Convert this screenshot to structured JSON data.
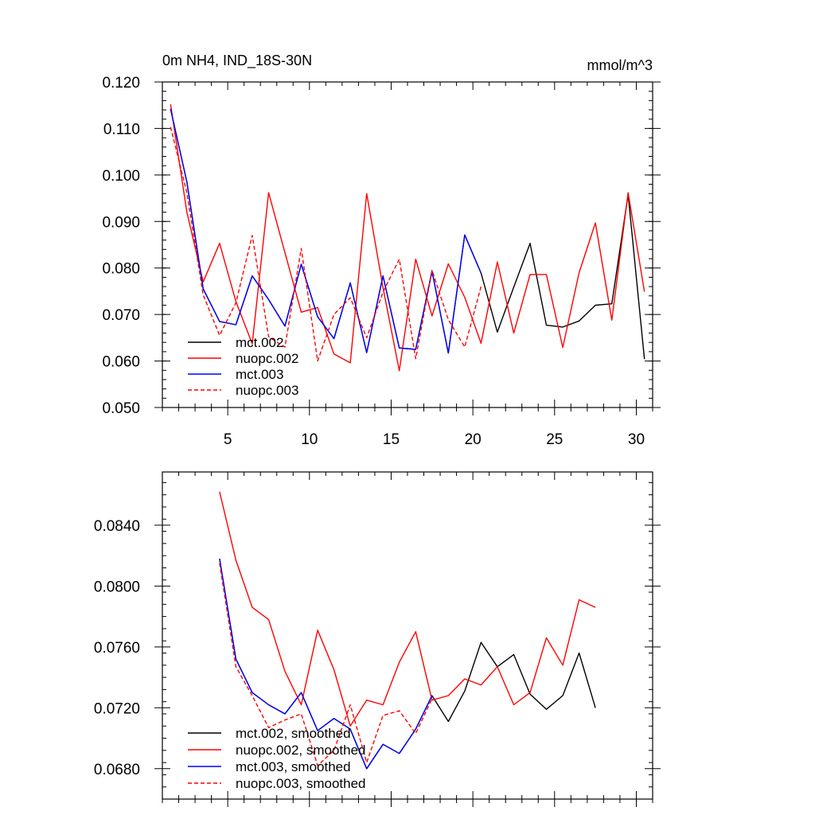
{
  "chart_data": [
    {
      "type": "line",
      "title": "0m NH4, IND_18S-30N",
      "units": "mmol/m^3",
      "xlim": [
        1,
        31
      ],
      "ylim": [
        0.05,
        0.12
      ],
      "x_tick_labels": [
        "5",
        "10",
        "15",
        "20",
        "25",
        "30"
      ],
      "y_tick_labels": [
        "0.050",
        "0.060",
        "0.070",
        "0.080",
        "0.090",
        "0.100",
        "0.110",
        "0.120"
      ],
      "series": [
        {
          "name": "mct.002",
          "color": "#000000",
          "dashed": false,
          "x": [
            1.5,
            2.5,
            3.5,
            4.5,
            5.5,
            6.5,
            7.5,
            8.5,
            9.5,
            10.5,
            11.5,
            12.5,
            13.5,
            14.5,
            15.5,
            16.5,
            17.5,
            18.5,
            19.5,
            20.5,
            21.5,
            22.5,
            23.5,
            24.5,
            25.5,
            26.5,
            27.5,
            28.5,
            29.5,
            30.5
          ],
          "values": [
            0.1142,
            0.0985,
            0.0755,
            0.0685,
            0.0678,
            0.0783,
            0.0732,
            0.0675,
            0.0808,
            0.0695,
            0.0648,
            0.0768,
            0.0618,
            0.0783,
            0.0628,
            0.0625,
            0.0793,
            0.0617,
            0.0871,
            0.0789,
            0.0662,
            0.0759,
            0.0853,
            0.0677,
            0.0673,
            0.0686,
            0.072,
            0.0723,
            0.0958,
            0.0604
          ]
        },
        {
          "name": "nuopc.002",
          "color": "#ff0000",
          "dashed": false,
          "x": [
            1.5,
            2.5,
            3.5,
            4.5,
            5.5,
            6.5,
            7.5,
            8.5,
            9.5,
            10.5,
            11.5,
            12.5,
            13.5,
            14.5,
            15.5,
            16.5,
            17.5,
            18.5,
            19.5,
            20.5,
            21.5,
            22.5,
            23.5,
            24.5,
            25.5,
            26.5,
            27.5,
            28.5,
            29.5,
            30.5
          ],
          "values": [
            0.1152,
            0.092,
            0.077,
            0.0853,
            0.0728,
            0.0637,
            0.0962,
            0.0833,
            0.0705,
            0.0715,
            0.0615,
            0.0596,
            0.096,
            0.0758,
            0.0579,
            0.0819,
            0.0697,
            0.0809,
            0.0737,
            0.0638,
            0.0813,
            0.066,
            0.0786,
            0.0786,
            0.0629,
            0.079,
            0.0897,
            0.0688,
            0.0962,
            0.0749
          ]
        },
        {
          "name": "mct.003",
          "color": "#0000ff",
          "dashed": false,
          "x": [
            1.5,
            2.5,
            3.5,
            4.5,
            5.5,
            6.5,
            7.5,
            8.5,
            9.5,
            10.5,
            11.5,
            12.5,
            13.5,
            14.5,
            15.5,
            16.5,
            17.5,
            18.5,
            19.5,
            20.5
          ],
          "values": [
            0.1142,
            0.0985,
            0.0755,
            0.0685,
            0.0678,
            0.0783,
            0.0732,
            0.0675,
            0.0808,
            0.0695,
            0.0648,
            0.0768,
            0.0618,
            0.0783,
            0.0628,
            0.0625,
            0.0793,
            0.0617,
            0.0871,
            0.0789
          ]
        },
        {
          "name": "nuopc.003",
          "color": "#ff0000",
          "dashed": true,
          "x": [
            1.5,
            2.5,
            3.5,
            4.5,
            5.5,
            6.5,
            7.5,
            8.5,
            9.5,
            10.5,
            11.5,
            12.5,
            13.5,
            14.5,
            15.5,
            16.5,
            17.5,
            18.5,
            19.5,
            20.5
          ],
          "values": [
            0.1103,
            0.0962,
            0.0742,
            0.0655,
            0.0725,
            0.087,
            0.0652,
            0.063,
            0.0842,
            0.06,
            0.07,
            0.0736,
            0.065,
            0.0748,
            0.0819,
            0.0605,
            0.0795,
            0.0689,
            0.063,
            0.076
          ]
        }
      ]
    },
    {
      "type": "line",
      "title": "",
      "xlim": [
        1,
        31
      ],
      "ylim": [
        0.066,
        0.0875
      ],
      "x_tick_labels": [],
      "y_tick_labels": [
        "0.0680",
        "0.0720",
        "0.0760",
        "0.0800",
        "0.0840"
      ],
      "y_tick_values": [
        0.068,
        0.072,
        0.076,
        0.08,
        0.084
      ],
      "series": [
        {
          "name": "mct.002, smoothed",
          "color": "#000000",
          "dashed": false,
          "x": [
            4.5,
            5.5,
            6.5,
            7.5,
            8.5,
            9.5,
            10.5,
            11.5,
            12.5,
            13.5,
            14.5,
            15.5,
            16.5,
            17.5,
            18.5,
            19.5,
            20.5,
            21.5,
            22.5,
            23.5,
            24.5,
            25.5,
            26.5,
            27.5
          ],
          "values": [
            0.0818,
            0.0752,
            0.073,
            0.0722,
            0.0716,
            0.073,
            0.0705,
            0.0713,
            0.0706,
            0.068,
            0.0696,
            0.069,
            0.0706,
            0.0728,
            0.0711,
            0.0731,
            0.0763,
            0.0747,
            0.0755,
            0.0729,
            0.0719,
            0.0728,
            0.0756,
            0.072
          ]
        },
        {
          "name": "nuopc.002, smoothed",
          "color": "#ff0000",
          "dashed": false,
          "x": [
            4.5,
            5.5,
            6.5,
            7.5,
            8.5,
            9.5,
            10.5,
            11.5,
            12.5,
            13.5,
            14.5,
            15.5,
            16.5,
            17.5,
            18.5,
            19.5,
            20.5,
            21.5,
            22.5,
            23.5,
            24.5,
            25.5,
            26.5,
            27.5
          ],
          "values": [
            0.0862,
            0.0817,
            0.0786,
            0.0778,
            0.0744,
            0.0722,
            0.0771,
            0.0745,
            0.0708,
            0.0725,
            0.0722,
            0.075,
            0.077,
            0.0725,
            0.0728,
            0.0739,
            0.0735,
            0.0747,
            0.0722,
            0.073,
            0.0766,
            0.0748,
            0.0791,
            0.0786
          ]
        },
        {
          "name": "mct.003, smoothed",
          "color": "#0000ff",
          "dashed": false,
          "x": [
            4.5,
            5.5,
            6.5,
            7.5,
            8.5,
            9.5,
            10.5,
            11.5,
            12.5,
            13.5,
            14.5,
            15.5,
            16.5,
            17.5
          ],
          "values": [
            0.0818,
            0.0752,
            0.073,
            0.0722,
            0.0716,
            0.073,
            0.0705,
            0.0713,
            0.0706,
            0.068,
            0.0696,
            0.069,
            0.0706,
            0.0728
          ]
        },
        {
          "name": "nuopc.003, smoothed",
          "color": "#ff0000",
          "dashed": true,
          "x": [
            4.5,
            5.5,
            6.5,
            7.5,
            8.5,
            9.5,
            10.5,
            11.5,
            12.5,
            13.5,
            14.5,
            15.5,
            16.5,
            17.5
          ],
          "values": [
            0.0815,
            0.0747,
            0.0728,
            0.0707,
            0.0712,
            0.0716,
            0.0682,
            0.0692,
            0.0722,
            0.0684,
            0.0715,
            0.0718,
            0.0703,
            0.0726
          ]
        }
      ]
    }
  ]
}
